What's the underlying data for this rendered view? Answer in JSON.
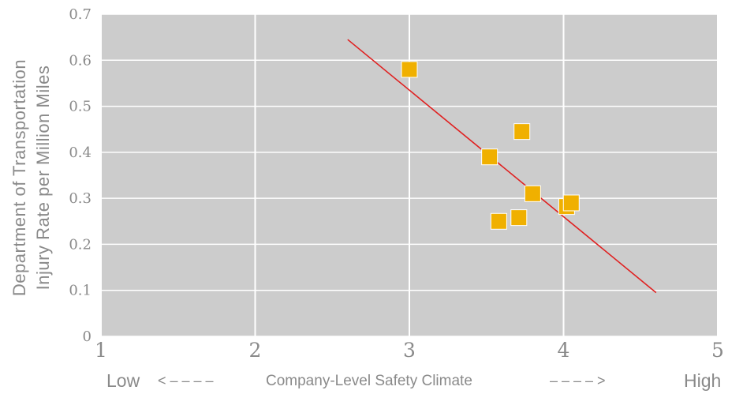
{
  "chart_data": {
    "type": "scatter",
    "title": "",
    "ylabel_lines": [
      "Department of Transportation",
      "Injury Rate per Million Miles"
    ],
    "xlabel": {
      "low": "Low",
      "left_arrow": "< – – – –",
      "center": "Company-Level Safety Climate",
      "right_arrow": "– – – – >",
      "high": "High"
    },
    "xlim": [
      1,
      5
    ],
    "ylim": [
      0,
      0.7
    ],
    "x_ticks": [
      "1",
      "2",
      "3",
      "4",
      "5"
    ],
    "y_ticks": [
      "0",
      "0.1",
      "0.2",
      "0.3",
      "0.4",
      "0.5",
      "0.6",
      "0.7"
    ],
    "grid": true,
    "legend": "none",
    "colors": {
      "background": "#cccccc",
      "grid": "#ffffff",
      "marker": "#f0b000",
      "trendline": "#e02020"
    },
    "points": [
      {
        "x": 3.0,
        "y": 0.58
      },
      {
        "x": 3.52,
        "y": 0.39
      },
      {
        "x": 3.73,
        "y": 0.445
      },
      {
        "x": 3.8,
        "y": 0.31
      },
      {
        "x": 3.58,
        "y": 0.25
      },
      {
        "x": 3.71,
        "y": 0.258
      },
      {
        "x": 4.02,
        "y": 0.282
      },
      {
        "x": 4.05,
        "y": 0.29
      }
    ],
    "trendline": {
      "x": [
        2.6,
        4.6
      ],
      "y": [
        0.645,
        0.095
      ]
    }
  }
}
